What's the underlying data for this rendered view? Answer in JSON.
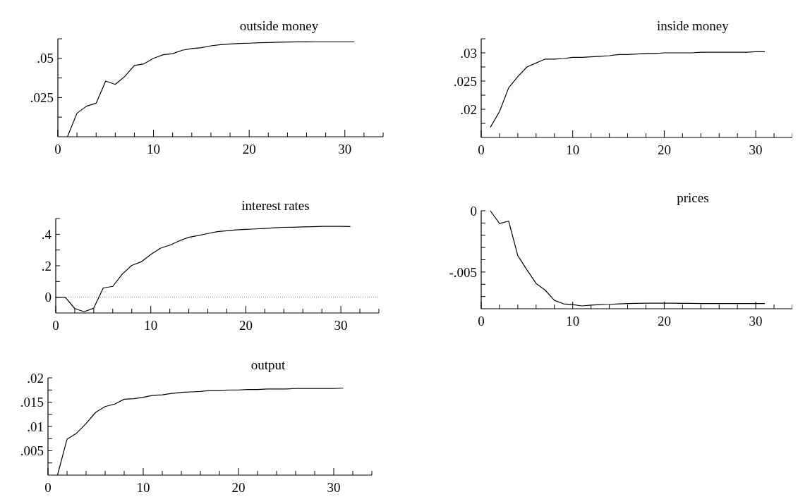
{
  "chart_data": [
    {
      "type": "line",
      "title": "outside money",
      "x": [
        1,
        2,
        3,
        4,
        5,
        6,
        7,
        8,
        9,
        10,
        11,
        12,
        13,
        14,
        15,
        16,
        17,
        18,
        19,
        20,
        21,
        22,
        23,
        24,
        25,
        26,
        27,
        28,
        29,
        30,
        31
      ],
      "series": [
        {
          "color": "#000000",
          "values": [
            0,
            0.015,
            0.0195,
            0.0214,
            0.0355,
            0.0334,
            0.0385,
            0.0455,
            0.0465,
            0.05,
            0.0523,
            0.053,
            0.0552,
            0.0563,
            0.0568,
            0.058,
            0.0587,
            0.0592,
            0.0595,
            0.0597,
            0.06,
            0.0601,
            0.0603,
            0.0604,
            0.0605,
            0.0605,
            0.0606,
            0.0606,
            0.0606,
            0.0606,
            0.0606
          ]
        }
      ],
      "xlim": [
        0,
        34
      ],
      "ylim": [
        0,
        0.0625
      ],
      "xticks": [
        0,
        {
          "value": 2,
          "label": null
        },
        {
          "value": 4,
          "label": null
        },
        {
          "value": 6,
          "label": null
        },
        {
          "value": 8,
          "label": null
        },
        10,
        {
          "value": 12,
          "label": null
        },
        {
          "value": 14,
          "label": null
        },
        {
          "value": 16,
          "label": null
        },
        {
          "value": 18,
          "label": null
        },
        20,
        {
          "value": 22,
          "label": null
        },
        {
          "value": 24,
          "label": null
        },
        {
          "value": 26,
          "label": null
        },
        {
          "value": 28,
          "label": null
        },
        30,
        {
          "value": 32,
          "label": null
        },
        {
          "value": 34,
          "label": null
        }
      ],
      "yticks": [
        {
          "value": 0.0125,
          "label": null
        },
        {
          "value": 0.025,
          "label": ".025"
        },
        {
          "value": 0.0375,
          "label": null
        },
        {
          "value": 0.05,
          "label": ".05"
        },
        {
          "value": 0.0625,
          "label": null
        }
      ]
    },
    {
      "type": "line",
      "title": "inside money",
      "x": [
        1,
        2,
        3,
        4,
        5,
        6,
        7,
        8,
        9,
        10,
        11,
        12,
        13,
        14,
        15,
        16,
        17,
        18,
        19,
        20,
        21,
        22,
        23,
        24,
        25,
        26,
        27,
        28,
        29,
        30,
        31
      ],
      "series": [
        {
          "color": "#000000",
          "values": [
            0.0168,
            0.0196,
            0.0238,
            0.0258,
            0.0275,
            0.0282,
            0.0289,
            0.0289,
            0.029,
            0.0292,
            0.0292,
            0.0293,
            0.0294,
            0.0295,
            0.0297,
            0.0297,
            0.0298,
            0.0299,
            0.0299,
            0.03,
            0.03,
            0.03,
            0.03,
            0.0301,
            0.0301,
            0.0301,
            0.0301,
            0.0301,
            0.0301,
            0.0302,
            0.0302
          ]
        }
      ],
      "xlim": [
        0,
        34
      ],
      "ylim": [
        0.015,
        0.0325
      ],
      "xticks": [
        0,
        {
          "value": 2,
          "label": null
        },
        {
          "value": 4,
          "label": null
        },
        {
          "value": 6,
          "label": null
        },
        {
          "value": 8,
          "label": null
        },
        10,
        {
          "value": 12,
          "label": null
        },
        {
          "value": 14,
          "label": null
        },
        {
          "value": 16,
          "label": null
        },
        {
          "value": 18,
          "label": null
        },
        20,
        {
          "value": 22,
          "label": null
        },
        {
          "value": 24,
          "label": null
        },
        {
          "value": 26,
          "label": null
        },
        {
          "value": 28,
          "label": null
        },
        30,
        {
          "value": 32,
          "label": null
        },
        {
          "value": 34,
          "label": null
        }
      ],
      "yticks": [
        {
          "value": 0.0175,
          "label": null
        },
        {
          "value": 0.02,
          "label": ".02"
        },
        {
          "value": 0.0225,
          "label": null
        },
        {
          "value": 0.025,
          "label": ".025"
        },
        {
          "value": 0.0275,
          "label": null
        },
        {
          "value": 0.03,
          "label": ".03"
        },
        {
          "value": 0.0325,
          "label": null
        }
      ]
    },
    {
      "type": "line",
      "title": "interest rates",
      "x": [
        0,
        1,
        2,
        3,
        4,
        5,
        6,
        7,
        8,
        9,
        10,
        11,
        12,
        13,
        14,
        15,
        16,
        17,
        18,
        19,
        20,
        21,
        22,
        23,
        24,
        25,
        26,
        27,
        28,
        29,
        30,
        31
      ],
      "series": [
        {
          "color": "#000000",
          "values": [
            0,
            0,
            -0.072,
            -0.092,
            -0.069,
            0.059,
            0.069,
            0.147,
            0.202,
            0.225,
            0.272,
            0.311,
            0.331,
            0.358,
            0.381,
            0.392,
            0.405,
            0.417,
            0.422,
            0.428,
            0.431,
            0.434,
            0.437,
            0.441,
            0.444,
            0.445,
            0.447,
            0.448,
            0.45,
            0.45,
            0.45,
            0.449
          ]
        }
      ],
      "xlim": [
        0,
        34
      ],
      "ylim": [
        -0.1,
        0.5
      ],
      "xticks": [
        0,
        {
          "value": 2,
          "label": null
        },
        {
          "value": 4,
          "label": null
        },
        {
          "value": 6,
          "label": null
        },
        {
          "value": 8,
          "label": null
        },
        10,
        {
          "value": 12,
          "label": null
        },
        {
          "value": 14,
          "label": null
        },
        {
          "value": 16,
          "label": null
        },
        {
          "value": 18,
          "label": null
        },
        20,
        {
          "value": 22,
          "label": null
        },
        {
          "value": 24,
          "label": null
        },
        {
          "value": 26,
          "label": null
        },
        {
          "value": 28,
          "label": null
        },
        30,
        {
          "value": 32,
          "label": null
        },
        {
          "value": 34,
          "label": null
        }
      ],
      "yticks": [
        0,
        {
          "value": 0.1,
          "label": null
        },
        {
          "value": 0.2,
          "label": ".2"
        },
        {
          "value": 0.3,
          "label": null
        },
        {
          "value": 0.4,
          "label": ".4"
        },
        {
          "value": 0.5,
          "label": null
        }
      ],
      "ref_lines": [
        {
          "axis": "y",
          "value": 0,
          "line_style": "dotted"
        }
      ]
    },
    {
      "type": "line",
      "title": "prices",
      "x": [
        1,
        2,
        3,
        4,
        5,
        6,
        7,
        8,
        9,
        10,
        11,
        12,
        13,
        14,
        15,
        16,
        17,
        18,
        19,
        20,
        21,
        22,
        23,
        24,
        25,
        26,
        27,
        28,
        29,
        30,
        31
      ],
      "series": [
        {
          "color": "#000000",
          "values": [
            0,
            -0.00104,
            -0.00085,
            -0.00366,
            -0.00483,
            -0.00594,
            -0.00649,
            -0.00732,
            -0.0076,
            -0.00766,
            -0.00777,
            -0.00771,
            -0.00766,
            -0.00764,
            -0.0076,
            -0.00758,
            -0.00756,
            -0.00755,
            -0.00755,
            -0.00755,
            -0.00755,
            -0.00756,
            -0.00756,
            -0.00757,
            -0.00757,
            -0.00757,
            -0.00757,
            -0.00757,
            -0.00757,
            -0.00757,
            -0.00757
          ]
        }
      ],
      "xlim": [
        0,
        34
      ],
      "ylim": [
        -0.008,
        0
      ],
      "xticks": [
        0,
        {
          "value": 2,
          "label": null
        },
        {
          "value": 4,
          "label": null
        },
        {
          "value": 6,
          "label": null
        },
        {
          "value": 8,
          "label": null
        },
        10,
        {
          "value": 12,
          "label": null
        },
        {
          "value": 14,
          "label": null
        },
        {
          "value": 16,
          "label": null
        },
        {
          "value": 18,
          "label": null
        },
        20,
        {
          "value": 22,
          "label": null
        },
        {
          "value": 24,
          "label": null
        },
        {
          "value": 26,
          "label": null
        },
        {
          "value": 28,
          "label": null
        },
        30,
        {
          "value": 32,
          "label": null
        },
        {
          "value": 34,
          "label": null
        }
      ],
      "yticks": [
        {
          "value": -0.007,
          "label": null
        },
        {
          "value": -0.006,
          "label": null
        },
        {
          "value": -0.005,
          "label": "-.005"
        },
        {
          "value": -0.004,
          "label": null
        },
        {
          "value": -0.003,
          "label": null
        },
        {
          "value": -0.002,
          "label": null
        },
        {
          "value": -0.001,
          "label": null
        },
        0
      ]
    },
    {
      "type": "line",
      "title": "output",
      "x": [
        1,
        2,
        3,
        4,
        5,
        6,
        7,
        8,
        9,
        10,
        11,
        12,
        13,
        14,
        15,
        16,
        17,
        18,
        19,
        20,
        21,
        22,
        23,
        24,
        25,
        26,
        27,
        28,
        29,
        30,
        31
      ],
      "series": [
        {
          "color": "#000000",
          "values": [
            0,
            0.0074,
            0.0086,
            0.0106,
            0.0129,
            0.0141,
            0.0146,
            0.0156,
            0.0157,
            0.016,
            0.0164,
            0.0165,
            0.0168,
            0.017,
            0.0171,
            0.0172,
            0.0174,
            0.0174,
            0.0175,
            0.0175,
            0.0176,
            0.0176,
            0.0177,
            0.0177,
            0.0177,
            0.0178,
            0.0178,
            0.0178,
            0.0178,
            0.0178,
            0.0179
          ]
        }
      ],
      "xlim": [
        0,
        34
      ],
      "ylim": [
        0,
        0.02
      ],
      "xticks": [
        0,
        {
          "value": 2,
          "label": null
        },
        {
          "value": 4,
          "label": null
        },
        {
          "value": 6,
          "label": null
        },
        {
          "value": 8,
          "label": null
        },
        10,
        {
          "value": 12,
          "label": null
        },
        {
          "value": 14,
          "label": null
        },
        {
          "value": 16,
          "label": null
        },
        {
          "value": 18,
          "label": null
        },
        20,
        {
          "value": 22,
          "label": null
        },
        {
          "value": 24,
          "label": null
        },
        {
          "value": 26,
          "label": null
        },
        {
          "value": 28,
          "label": null
        },
        30,
        {
          "value": 32,
          "label": null
        },
        {
          "value": 34,
          "label": null
        }
      ],
      "yticks": [
        {
          "value": 0.0025,
          "label": null
        },
        {
          "value": 0.005,
          "label": ".005"
        },
        {
          "value": 0.0075,
          "label": null
        },
        {
          "value": 0.01,
          "label": ".01"
        },
        {
          "value": 0.0125,
          "label": null
        },
        {
          "value": 0.015,
          "label": ".015"
        },
        {
          "value": 0.0175,
          "label": null
        },
        {
          "value": 0.02,
          "label": ".02"
        }
      ]
    }
  ]
}
